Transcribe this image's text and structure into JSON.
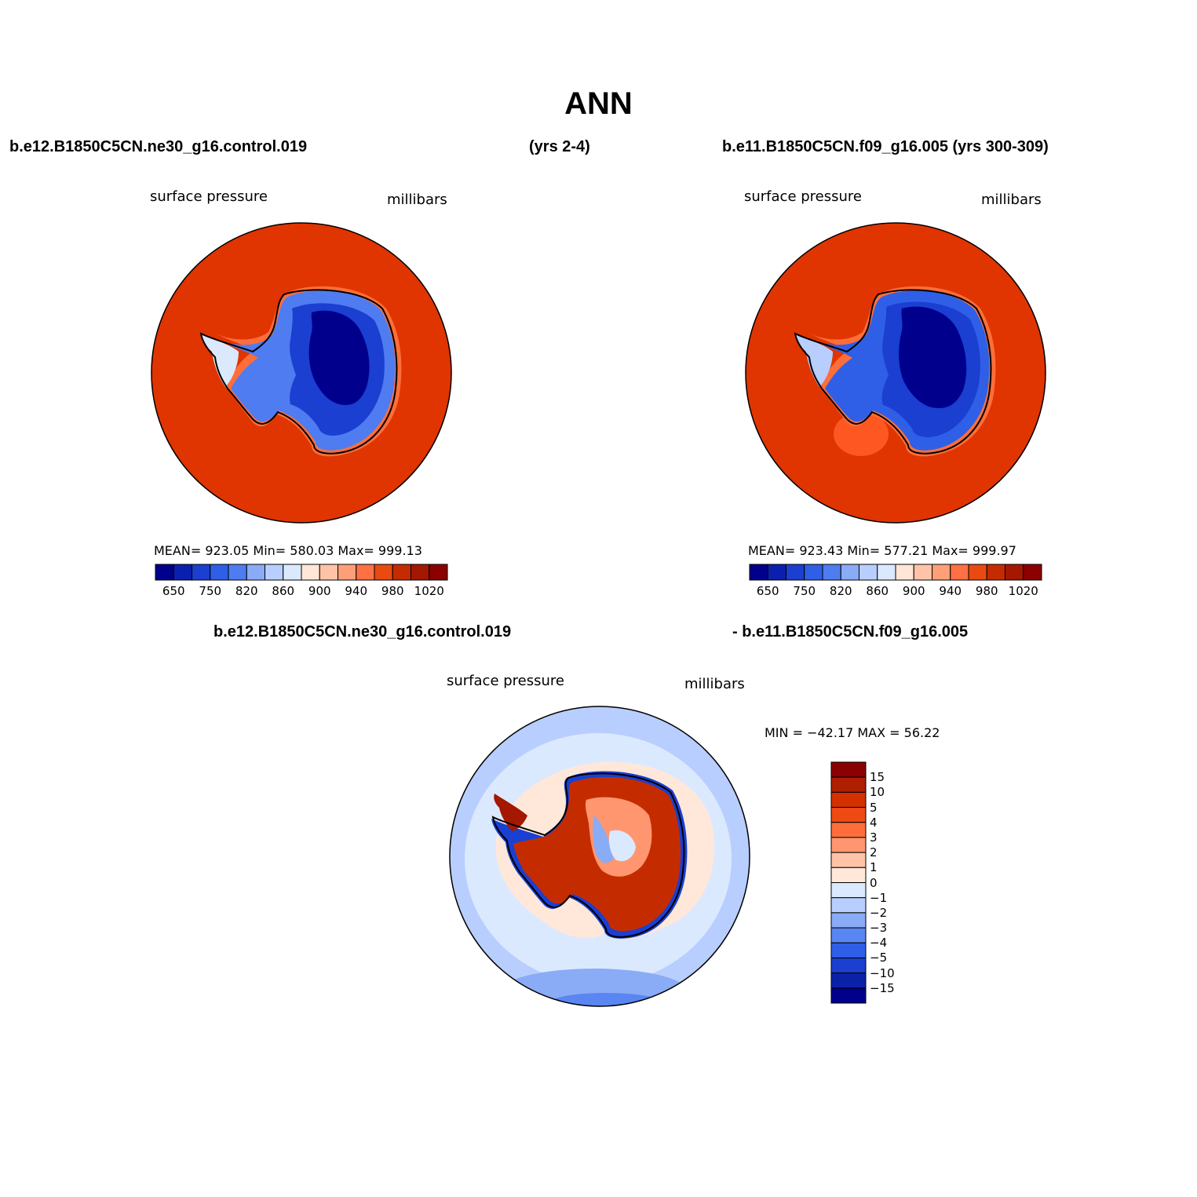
{
  "title": "ANN",
  "colors": {
    "ocean_red": "#e03500",
    "ocean_red_light": "#ff5722",
    "deep_blue": "#00008c",
    "mid_blue": "#1a3fd1",
    "light_blue": "#4f7cf0",
    "pale_blue": "#d4e6ff",
    "diff_ocean_blue": "#b9d1ff",
    "diff_pale_blue": "#dbeaff",
    "diff_peach": "#ffdcc8",
    "diff_red": "#c41e0a",
    "coast": "#000000"
  },
  "panel_left": {
    "case_name": "b.e12.B1850C5CN.ne30_g16.control.019",
    "years": "(yrs 2-4)",
    "variable": "surface pressure",
    "units": "millibars",
    "stats": "MEAN= 923.05   Min= 580.03   Max= 999.13",
    "colorbar_colors": [
      "#00008c",
      "#0b1fae",
      "#1a3fd1",
      "#2f5fe6",
      "#4f7cf0",
      "#8aabf5",
      "#b8ceff",
      "#dbe9ff",
      "#ffe6d6",
      "#ffc4a8",
      "#ff9f78",
      "#ff7043",
      "#e84a10",
      "#c42c00",
      "#a41700",
      "#8b0000"
    ],
    "colorbar_labels": [
      "650",
      "750",
      "820",
      "860",
      "900",
      "940",
      "980",
      "1020"
    ]
  },
  "panel_right": {
    "case_name": "b.e11.B1850C5CN.f09_g16.005 (yrs 300-309)",
    "variable": "surface pressure",
    "units": "millibars",
    "stats": "MEAN= 923.43   Min= 577.21   Max= 999.97",
    "colorbar_colors": [
      "#00008c",
      "#0b1fae",
      "#1a3fd1",
      "#2f5fe6",
      "#4f7cf0",
      "#8aabf5",
      "#b8ceff",
      "#dbe9ff",
      "#ffe6d6",
      "#ffc4a8",
      "#ff9f78",
      "#ff7043",
      "#e84a10",
      "#c42c00",
      "#a41700",
      "#8b0000"
    ],
    "colorbar_labels": [
      "650",
      "750",
      "820",
      "860",
      "900",
      "940",
      "980",
      "1020"
    ]
  },
  "panel_diff": {
    "case_a": "b.e12.B1850C5CN.ne30_g16.control.019",
    "case_b": "- b.e11.B1850C5CN.f09_g16.005",
    "variable": "surface pressure",
    "units": "millibars",
    "minmax": "MIN = −42.17 MAX =   56.22",
    "colorbar_colors": [
      "#8b0000",
      "#b01e00",
      "#d43000",
      "#f04a14",
      "#ff6e3a",
      "#ff9670",
      "#ffc4a8",
      "#ffe8da",
      "#dbe9ff",
      "#b8ceff",
      "#8aabf5",
      "#5a86f2",
      "#2f5fe6",
      "#1a3fd1",
      "#0b22a8",
      "#00008c"
    ],
    "colorbar_labels": [
      "15",
      "10",
      "5",
      "4",
      "3",
      "2",
      "1",
      "0",
      "−1",
      "−2",
      "−3",
      "−4",
      "−5",
      "−10",
      "−15"
    ]
  }
}
